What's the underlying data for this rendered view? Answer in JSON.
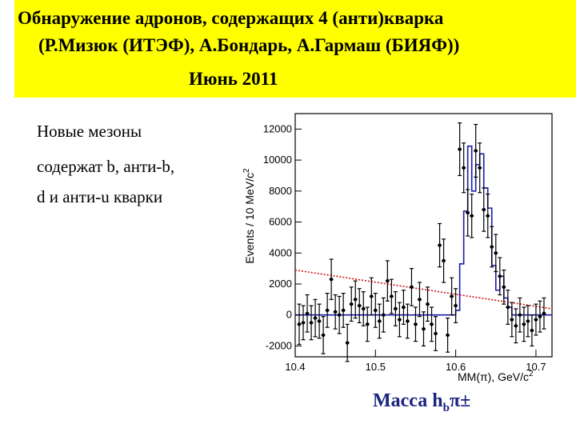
{
  "header": {
    "line1": "Обнаружение адронов, содержащих 4 (анти)кварка",
    "line2": "(Р.Мизюк (ИТЭФ), А.Бондарь, А.Гармаш (БИЯФ))",
    "line3": "Июнь 2011"
  },
  "side_text": {
    "line1": "Новые мезоны",
    "line2": "содержат b,  анти-b,",
    "line3": "d и анти-u кварки"
  },
  "mass_label": {
    "prefix": "Масса  h",
    "sub": "b",
    "suffix": "π±"
  },
  "colors": {
    "banner": "#ffff00",
    "fit": "#1a1aaa",
    "background": "#d01010",
    "points": "#000000",
    "mass_label": "#1a237e"
  },
  "chart_data": {
    "type": "scatter",
    "xlabel_main": "MM(π), GeV/c",
    "xlabel_exp": "2",
    "ylabel_main": "Events / 10 MeV/c",
    "ylabel_exp": "2",
    "xlim": [
      10.4,
      10.72
    ],
    "ylim": [
      -2700,
      13000
    ],
    "xticks": [
      10.4,
      10.5,
      10.6,
      10.7
    ],
    "xtick_labels": [
      "10.4",
      "10.5",
      "10.6",
      "10.7"
    ],
    "yticks": [
      -2000,
      0,
      2000,
      4000,
      6000,
      8000,
      10000,
      12000
    ],
    "ytick_labels": [
      "-2000",
      "0",
      "2000",
      "4000",
      "6000",
      "8000",
      "10000",
      "12000"
    ],
    "grid": false,
    "series": [
      {
        "kind": "points",
        "x": [
          10.405,
          10.41,
          10.415,
          10.42,
          10.425,
          10.43,
          10.435,
          10.44,
          10.445,
          10.45,
          10.455,
          10.46,
          10.465,
          10.47,
          10.475,
          10.48,
          10.485,
          10.49,
          10.495,
          10.5,
          10.505,
          10.51,
          10.515,
          10.52,
          10.525,
          10.53,
          10.535,
          10.54,
          10.545,
          10.55,
          10.555,
          10.56,
          10.565,
          10.57,
          10.575,
          10.58,
          10.585,
          10.59,
          10.595,
          10.6,
          10.605,
          10.61,
          10.615,
          10.62,
          10.625,
          10.63,
          10.635,
          10.64,
          10.645,
          10.65,
          10.655,
          10.66,
          10.665,
          10.67,
          10.675,
          10.68,
          10.685,
          10.69,
          10.695,
          10.7,
          10.705,
          10.71
        ],
        "y": [
          -600,
          -500,
          100,
          -500,
          -200,
          -400,
          -1300,
          300,
          2300,
          200,
          0,
          300,
          -1800,
          700,
          1000,
          600,
          400,
          -600,
          1200,
          300,
          -400,
          0,
          2200,
          1200,
          400,
          -300,
          500,
          -400,
          1800,
          -600,
          1000,
          -900,
          700,
          -600,
          -1200,
          4500,
          3500,
          -1300,
          1200,
          600,
          10700,
          9500,
          6600,
          6400,
          10600,
          9500,
          6800,
          6400,
          4400,
          4000,
          2500,
          1800,
          500,
          -300,
          -700,
          0,
          -600,
          -400,
          -1000,
          -300,
          -100,
          100
        ],
        "yerr": [
          1300,
          1100,
          1200,
          1100,
          1200,
          1100,
          1200,
          1100,
          1300,
          1100,
          1200,
          1100,
          1200,
          1100,
          1200,
          1100,
          1100,
          1100,
          1200,
          1100,
          1100,
          1100,
          1300,
          1100,
          1100,
          1100,
          1100,
          1100,
          1200,
          1100,
          1100,
          1100,
          1100,
          1100,
          1100,
          1400,
          1400,
          1100,
          1200,
          1100,
          1700,
          1600,
          1500,
          1400,
          1700,
          1600,
          1400,
          1400,
          1300,
          1200,
          1200,
          1100,
          1100,
          1100,
          1100,
          1100,
          1100,
          1000,
          1000,
          1000,
          1000,
          1000
        ]
      },
      {
        "kind": "step",
        "x": [
          10.4,
          10.6,
          10.605,
          10.61,
          10.615,
          10.62,
          10.625,
          10.63,
          10.635,
          10.64,
          10.645,
          10.65,
          10.655,
          10.66,
          10.665,
          10.67,
          10.675,
          10.68,
          10.685,
          10.69,
          10.695,
          10.7,
          10.705,
          10.71
        ],
        "y": [
          0,
          300,
          3300,
          6700,
          10900,
          8000,
          9700,
          10400,
          8200,
          6900,
          3200,
          1600,
          2500,
          1100,
          500,
          0,
          0,
          0,
          0,
          0,
          0,
          0,
          0,
          0
        ]
      },
      {
        "kind": "background",
        "x": [
          10.4,
          10.72
        ],
        "y": [
          2900,
          400
        ]
      }
    ]
  }
}
